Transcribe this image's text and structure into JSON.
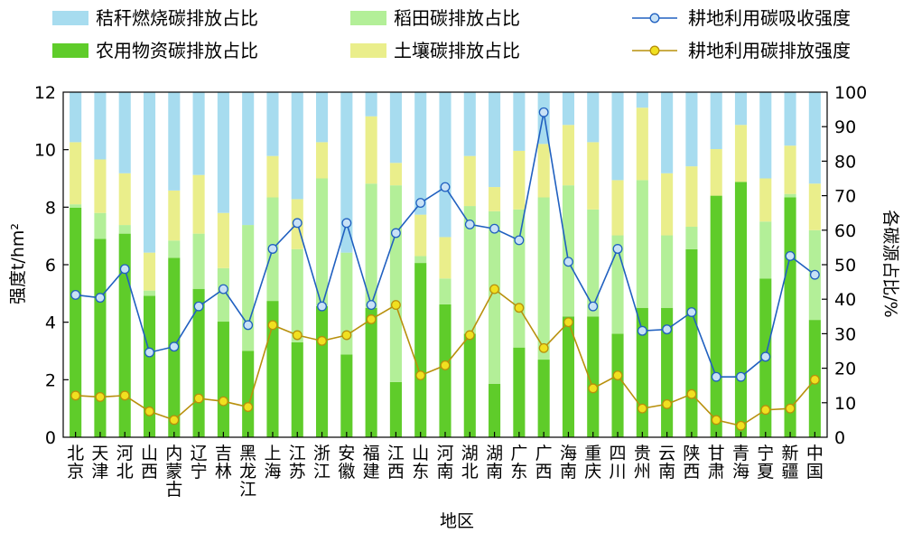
{
  "chart_data": {
    "type": "bar",
    "xlabel": "地区",
    "ylabel_left": "强度t/hm²",
    "ylabel_right": "各碳源占比/%",
    "ylim_left": [
      0,
      12
    ],
    "ylim_right": [
      0,
      100
    ],
    "yticks_left": [
      "0",
      "2",
      "4",
      "6",
      "8",
      "10",
      "12"
    ],
    "yticks_right": [
      "0",
      "10",
      "20",
      "30",
      "40",
      "50",
      "60",
      "70",
      "80",
      "90",
      "100"
    ],
    "legend_placement": "top",
    "categories": [
      "北京",
      "天津",
      "河北",
      "山西",
      "内蒙古",
      "辽宁",
      "吉林",
      "黑龙江",
      "上海",
      "江苏",
      "浙江",
      "安徽",
      "福建",
      "江西",
      "山东",
      "河南",
      "湖北",
      "湖南",
      "广东",
      "广西",
      "海南",
      "重庆",
      "四川",
      "贵州",
      "云南",
      "陕西",
      "甘肃",
      "青海",
      "宁夏",
      "新疆",
      "中国"
    ],
    "bar_series": [
      {
        "name": "农用物资碳排放占比",
        "color": "#5fcc2a",
        "values": [
          66.5,
          57.5,
          59,
          41,
          52,
          43,
          33.5,
          25,
          39.5,
          27.5,
          38,
          24,
          37.5,
          16,
          50.5,
          38.5,
          30,
          15.5,
          26,
          22.5,
          35,
          35,
          30,
          37.5,
          37.5,
          54.5,
          70,
          74,
          46,
          69.5,
          34
        ]
      },
      {
        "name": "稻田碳排放占比",
        "color": "#b3ef98",
        "values": [
          1,
          7.5,
          2.5,
          1.5,
          5,
          16,
          15.5,
          36.5,
          30,
          27,
          37,
          29.5,
          36,
          57,
          2,
          7.5,
          37,
          50,
          40,
          47,
          38,
          31,
          28.5,
          37,
          21,
          6.5,
          0,
          0,
          16.5,
          1,
          26
        ]
      },
      {
        "name": "土壤碳排放占比",
        "color": "#eaee8b",
        "values": [
          18,
          15.5,
          15,
          11,
          14.5,
          17,
          16,
          0,
          12,
          14.5,
          10.5,
          0,
          19.5,
          6.5,
          12,
          12,
          14.5,
          7,
          17,
          15.5,
          17.5,
          19.5,
          16,
          21,
          18,
          17.5,
          13.5,
          16.5,
          12.5,
          14,
          13.5
        ]
      },
      {
        "name": "秸秆燃烧碳排放占比",
        "color": "#a7dcef",
        "values": [
          14.5,
          19.5,
          23.5,
          46.5,
          28.5,
          24,
          35,
          38.5,
          18.5,
          31,
          14.5,
          46.5,
          7,
          20.5,
          35.5,
          42,
          18.5,
          27.5,
          17,
          15,
          9.5,
          14.5,
          25.5,
          4.5,
          23.5,
          21.5,
          16.5,
          9.5,
          25,
          15.5,
          26.5
        ]
      }
    ],
    "line_series": [
      {
        "name": "耕地利用碳吸收强度",
        "color": "#2060c0",
        "marker_fill": "#c8e2f6",
        "values": [
          4.95,
          4.85,
          5.85,
          2.95,
          3.15,
          4.55,
          5.15,
          3.9,
          6.55,
          7.45,
          4.55,
          7.45,
          4.6,
          7.1,
          8.15,
          8.7,
          7.4,
          7.25,
          6.85,
          11.3,
          6.1,
          4.55,
          6.55,
          3.7,
          3.75,
          4.35,
          2.1,
          2.1,
          2.8,
          6.3,
          5.65
        ]
      },
      {
        "name": "耕地利用碳排放强度",
        "color": "#b8900c",
        "marker_fill": "#f0e020",
        "values": [
          1.45,
          1.4,
          1.45,
          0.9,
          0.6,
          1.35,
          1.25,
          1.05,
          3.9,
          3.55,
          3.35,
          3.55,
          4.1,
          4.6,
          2.15,
          2.5,
          3.55,
          5.15,
          4.5,
          3.1,
          4.0,
          1.7,
          2.15,
          1.0,
          1.15,
          1.5,
          0.6,
          0.4,
          0.95,
          1.0,
          2.0
        ]
      }
    ]
  }
}
